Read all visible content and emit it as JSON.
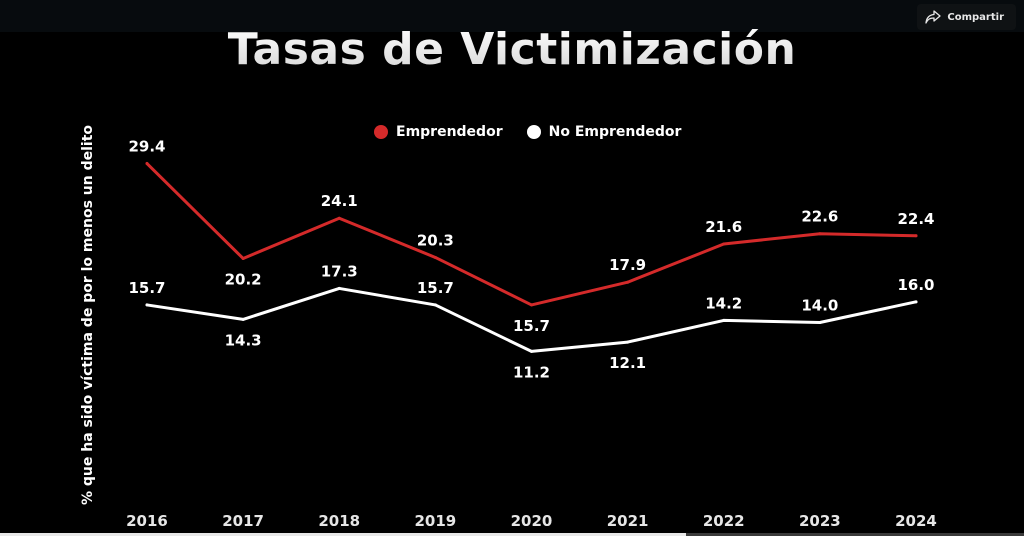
{
  "toolbar": {
    "share_label": "Compartir",
    "share_icon": "share-arrow-icon"
  },
  "playback": {
    "progress_percent": 67
  },
  "chart_data": {
    "type": "line",
    "title": "Tasas de Victimización",
    "xlabel": "",
    "ylabel": "% que ha sido víctima de por lo menos un delito",
    "categories": [
      "2016",
      "2017",
      "2018",
      "2019",
      "2020",
      "2021",
      "2022",
      "2023",
      "2024"
    ],
    "series": [
      {
        "name": "Emprendedor",
        "color": "#d42a2a",
        "values": [
          29.4,
          20.2,
          24.1,
          20.3,
          15.7,
          17.9,
          21.6,
          22.6,
          22.4
        ],
        "labels": [
          "29.4",
          "20.2",
          "24.1",
          "20.3",
          "15.7",
          "17.9",
          "21.6",
          "22.6",
          "22.4"
        ],
        "label_pos": [
          "above",
          "below",
          "above",
          "above",
          "below",
          "above",
          "above",
          "above",
          "above"
        ]
      },
      {
        "name": "No Emprendedor",
        "color": "#ffffff",
        "values": [
          15.7,
          14.3,
          17.3,
          15.7,
          11.2,
          12.1,
          14.2,
          14.0,
          16.0
        ],
        "labels": [
          "15.7",
          "14.3",
          "17.3",
          "15.7",
          "11.2",
          "12.1",
          "14.2",
          "14.0",
          "16.0"
        ],
        "label_pos": [
          "above",
          "below",
          "above",
          "above",
          "below",
          "below",
          "above",
          "above",
          "above"
        ]
      }
    ],
    "ylim": [
      0,
      31
    ],
    "grid": false,
    "legend": "top-center",
    "y_axis_visible": false
  }
}
